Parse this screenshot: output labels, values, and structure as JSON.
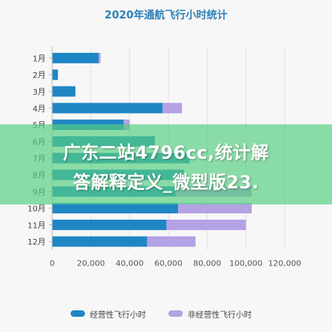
{
  "overlay": {
    "line1": "广东二站4796cc,统计解",
    "line2": "答解释定义_微型版23."
  },
  "chart_data": {
    "type": "bar",
    "orientation": "horizontal",
    "stacked": true,
    "title": "2020年通航飞行小时统计",
    "categories": [
      "1月",
      "2月",
      "3月",
      "4月",
      "5月",
      "6月",
      "7月",
      "8月",
      "9月",
      "10月",
      "11月",
      "12月"
    ],
    "series": [
      {
        "name": "经营性飞行小时",
        "color": "#1f86c4",
        "values": [
          24000,
          3000,
          12000,
          57000,
          37000,
          53000,
          71000,
          68000,
          64000,
          65000,
          59000,
          49000
        ]
      },
      {
        "name": "非经营性飞行小时",
        "color": "#b5a2e4",
        "values": [
          1000,
          0,
          0,
          10000,
          3000,
          0,
          0,
          0,
          39000,
          38000,
          41000,
          25000
        ]
      }
    ],
    "xlim": [
      0,
      120000
    ],
    "xticks": [
      "0",
      "20,000",
      "40,000",
      "60,000",
      "80,000",
      "100,000",
      "120,000"
    ],
    "grid": true,
    "legend_position": "bottom"
  }
}
